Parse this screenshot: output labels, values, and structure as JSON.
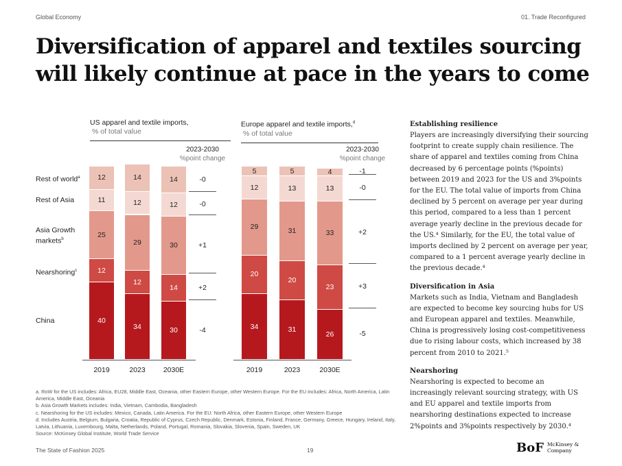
{
  "header": {
    "left": "Global Economy",
    "right": "01. Trade Reconfigured"
  },
  "title": "Diversification of apparel and textiles sourcing will likely continue at pace in the years to come",
  "chart_data": [
    {
      "type": "bar",
      "stacked": true,
      "title": "US apparel and textile imports,",
      "subtitle": "% of total value",
      "change_header": "2023-2030",
      "change_sub": "%point change",
      "categories": [
        "2019",
        "2023",
        "2030E"
      ],
      "series": [
        {
          "name": "China",
          "label": "China",
          "sup": "",
          "color": "#b5191e",
          "text": "#fff",
          "values": [
            40,
            34,
            30
          ],
          "change": "-4"
        },
        {
          "name": "Nearshoring",
          "label": "Nearshoring",
          "sup": "c",
          "color": "#cf4a44",
          "text": "#fff",
          "values": [
            12,
            12,
            14
          ],
          "change": "+2"
        },
        {
          "name": "Asia Growth markets",
          "label": "Asia Growth markets",
          "sup": "b",
          "color": "#e2998b",
          "text": "#222",
          "values": [
            25,
            29,
            30
          ],
          "change": "+1"
        },
        {
          "name": "Rest of Asia",
          "label": "Rest of Asia",
          "sup": "",
          "color": "#f4d9d2",
          "text": "#222",
          "values": [
            11,
            12,
            12
          ],
          "change": "-0"
        },
        {
          "name": "Rest of world",
          "label": "Rest of world",
          "sup": "a",
          "color": "#ecc2b6",
          "text": "#222",
          "values": [
            12,
            14,
            14
          ],
          "change": "-0"
        }
      ],
      "ylim": [
        0,
        100
      ]
    },
    {
      "type": "bar",
      "stacked": true,
      "title": "Europe apparel and textile imports,",
      "title_sup": "d",
      "subtitle": "% of total value",
      "change_header": "2023-2030",
      "change_sub": "%point change",
      "categories": [
        "2019",
        "2023",
        "2030E"
      ],
      "series": [
        {
          "name": "China",
          "color": "#b5191e",
          "text": "#fff",
          "values": [
            34,
            31,
            26
          ],
          "change": "-5"
        },
        {
          "name": "Nearshoring",
          "color": "#cf4a44",
          "text": "#fff",
          "values": [
            20,
            20,
            23
          ],
          "change": "+3"
        },
        {
          "name": "Asia Growth markets",
          "color": "#e2998b",
          "text": "#222",
          "values": [
            29,
            31,
            33
          ],
          "change": "+2"
        },
        {
          "name": "Rest of Asia",
          "color": "#f4d9d2",
          "text": "#222",
          "values": [
            12,
            13,
            13
          ],
          "change": "-0"
        },
        {
          "name": "Rest of world",
          "color": "#ecc2b6",
          "text": "#222",
          "values": [
            5,
            5,
            4
          ],
          "change": "-1"
        }
      ],
      "ylim": [
        0,
        100
      ]
    }
  ],
  "side": [
    {
      "heading": "Establishing resilience",
      "body": "Players are increasingly diversifying their sourcing footprint to create supply chain resilience. The share of apparel and textiles coming from China decreased by 6 percentage points (%points) between 2019 and 2023 for the US and 3%points for the EU. The total value of imports from China declined by 5 percent on average per year during this period, compared to a less than 1 percent average yearly decline in the previous decade for the US.⁴ Similarly, for the EU, the total value of imports declined by 2 percent on average per year, compared to a 1 percent average yearly decline in the previous decade.⁴"
    },
    {
      "heading": "Diversification in Asia",
      "body": "Markets such as India, Vietnam and Bangladesh are expected to become key sourcing hubs for US and European apparel and textiles. Meanwhile, China is progressively losing cost-competitiveness due to rising labour costs, which increased by 38 percent from 2010 to 2021.⁵"
    },
    {
      "heading": "Nearshoring",
      "body": "Nearshoring is expected to become an increasingly relevant sourcing strategy, with US and EU apparel and textile imports from nearshoring destinations expected to increase 2%points and 3%points respectively by 2030.⁴"
    }
  ],
  "notes": [
    "a. RoW for the US includes: Africa, EU28, Middle East, Oceania, other Eastern Europe, other Western Europe. For the EU includes: Africa, North America, Latin America, Middle East, Oceania",
    "b. Asia Growth Markets includes: India, Vietnam, Cambodia, Bangladesh",
    "c. Nearshoring for the US includes: Mexico, Canada, Latin America. For the EU: North Africa, other Eastern Europe, other Western Europe",
    "d. Includes Austria, Belgium, Bulgaria, Croatia, Republic of Cyprus, Czech Republic, Denmark, Estonia, Finland, France, Germany, Greece, Hungary, Ireland, Italy, Latvia, Lithuania, Luxembourg, Malta, Netherlands, Poland, Portugal, Romania, Slovakia, Slovenia, Spain, Sweden, UK",
    "Source: McKinsey Global Institute, World Trade Service"
  ],
  "footer": {
    "left": "The State of Fashion 2025",
    "page": "19",
    "logo_bof": "BoF",
    "logo_mck": "McKinsey & Company"
  }
}
